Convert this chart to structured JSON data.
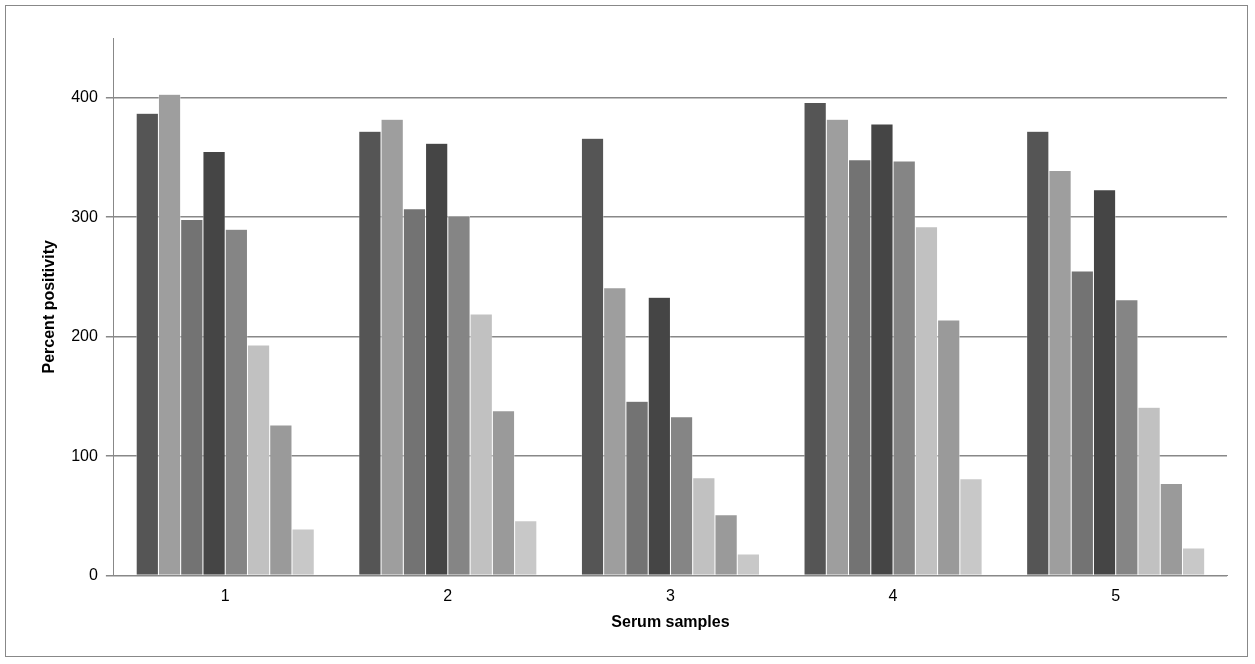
{
  "chart_data": {
    "type": "bar",
    "xlabel": "Serum samples",
    "ylabel": "Percent positivity",
    "categories": [
      "1",
      "2",
      "3",
      "4",
      "5"
    ],
    "series": [
      {
        "color": "#555555",
        "values": [
          387,
          372,
          366,
          396,
          372
        ]
      },
      {
        "color": "#9e9e9e",
        "values": [
          403,
          382,
          241,
          382,
          339
        ]
      },
      {
        "color": "#737373",
        "values": [
          298,
          307,
          146,
          348,
          255
        ]
      },
      {
        "color": "#454545",
        "values": [
          355,
          362,
          233,
          378,
          323
        ]
      },
      {
        "color": "#858585",
        "values": [
          290,
          301,
          133,
          347,
          231
        ]
      },
      {
        "color": "#c1c1c1",
        "values": [
          193,
          219,
          82,
          292,
          141
        ]
      },
      {
        "color": "#9a9a9a",
        "values": [
          126,
          138,
          51,
          214,
          77
        ]
      },
      {
        "color": "#c8c8c8",
        "values": [
          39,
          46,
          18,
          81,
          23
        ]
      }
    ],
    "ylim": [
      0,
      450
    ],
    "yticks": [
      0,
      100,
      200,
      300,
      400
    ],
    "grid": "y",
    "legend": false
  }
}
